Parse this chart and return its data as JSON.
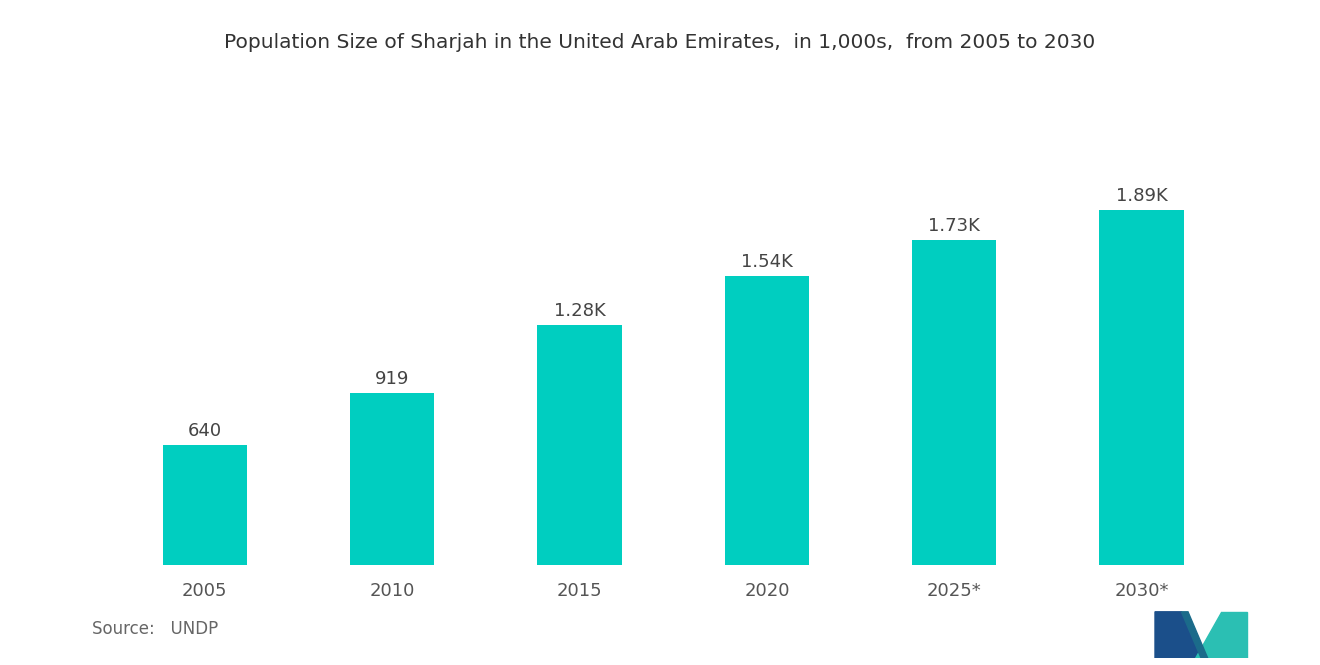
{
  "title": "Population Size of Sharjah in the United Arab Emirates,  in 1,000s,  from 2005 to 2030",
  "categories": [
    "2005",
    "2010",
    "2015",
    "2020",
    "2025*",
    "2030*"
  ],
  "values": [
    640,
    919,
    1280,
    1540,
    1730,
    1890
  ],
  "labels": [
    "640",
    "919",
    "1.28K",
    "1.54K",
    "1.73K",
    "1.89K"
  ],
  "bar_color": "#00CEC0",
  "background_color": "#FFFFFF",
  "source_text": "Source:   UNDP",
  "title_fontsize": 14.5,
  "label_fontsize": 13,
  "tick_fontsize": 13,
  "source_fontsize": 12,
  "bar_width": 0.45,
  "ylim": [
    0,
    2300
  ]
}
